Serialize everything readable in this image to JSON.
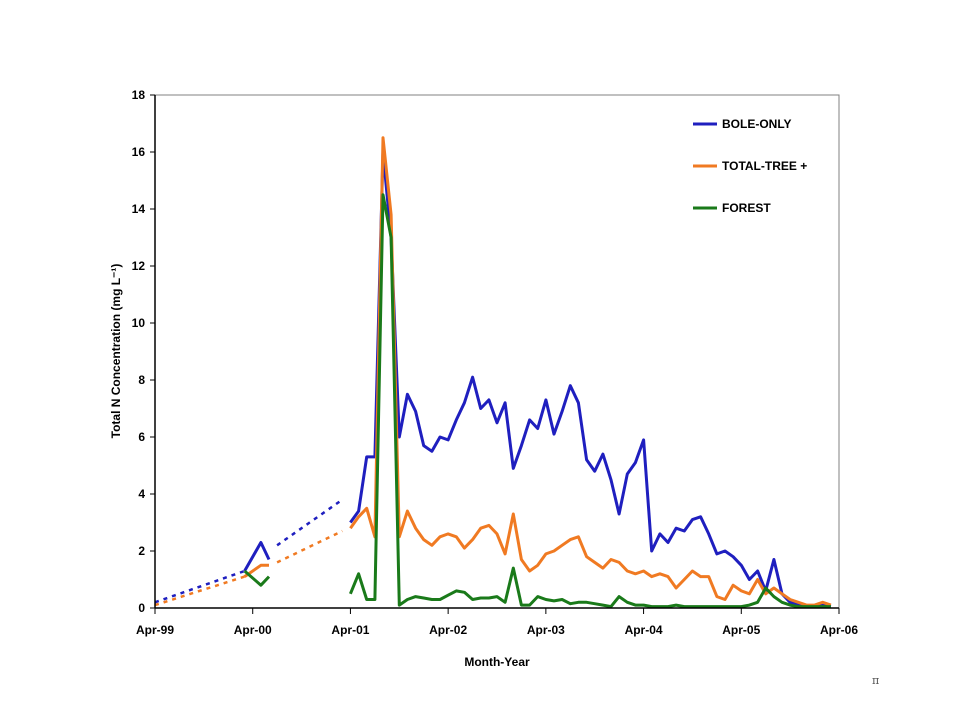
{
  "chart_data": {
    "type": "line",
    "title": "",
    "xlabel": "Month-Year",
    "ylabel": "Total N Concentration (mg L⁻¹)",
    "xlim": [
      "1999-04",
      "2006-04"
    ],
    "ylim": [
      0,
      18
    ],
    "x_ticks": [
      "Apr-99",
      "Apr-00",
      "Apr-01",
      "Apr-02",
      "Apr-03",
      "Apr-04",
      "Apr-05",
      "Apr-06"
    ],
    "y_ticks": [
      0,
      2,
      4,
      6,
      8,
      10,
      12,
      14,
      16,
      18
    ],
    "grid": false,
    "legend_position": "top-right",
    "series": [
      {
        "name": "BOLE-ONLY",
        "color": "#1f1fbf",
        "segments": [
          [
            [
              "2000-03",
              1.3
            ],
            [
              "2000-05",
              2.3
            ],
            [
              "2000-06",
              1.7
            ]
          ],
          [
            [
              "2001-04",
              3.0
            ],
            [
              "2001-05",
              3.4
            ],
            [
              "2001-06",
              5.3
            ],
            [
              "2001-07",
              5.3
            ],
            [
              "2001-08",
              16.0
            ],
            [
              "2001-09",
              13.0
            ],
            [
              "2001-10",
              6.0
            ],
            [
              "2001-11",
              7.5
            ],
            [
              "2001-12",
              6.9
            ],
            [
              "2002-01",
              5.7
            ],
            [
              "2002-02",
              5.5
            ],
            [
              "2002-03",
              6.0
            ],
            [
              "2002-04",
              5.9
            ],
            [
              "2002-05",
              6.6
            ],
            [
              "2002-06",
              7.2
            ],
            [
              "2002-07",
              8.1
            ],
            [
              "2002-08",
              7.0
            ],
            [
              "2002-09",
              7.3
            ],
            [
              "2002-10",
              6.5
            ],
            [
              "2002-11",
              7.2
            ],
            [
              "2002-12",
              4.9
            ],
            [
              "2003-01",
              5.7
            ],
            [
              "2003-02",
              6.6
            ],
            [
              "2003-03",
              6.3
            ],
            [
              "2003-04",
              7.3
            ],
            [
              "2003-05",
              6.1
            ],
            [
              "2003-06",
              6.9
            ],
            [
              "2003-07",
              7.8
            ],
            [
              "2003-08",
              7.2
            ],
            [
              "2003-09",
              5.2
            ],
            [
              "2003-10",
              4.8
            ],
            [
              "2003-11",
              5.4
            ],
            [
              "2003-12",
              4.5
            ],
            [
              "2004-01",
              3.3
            ],
            [
              "2004-02",
              4.7
            ],
            [
              "2004-03",
              5.1
            ],
            [
              "2004-04",
              5.9
            ],
            [
              "2004-05",
              2.0
            ],
            [
              "2004-06",
              2.6
            ],
            [
              "2004-07",
              2.3
            ],
            [
              "2004-08",
              2.8
            ],
            [
              "2004-09",
              2.7
            ],
            [
              "2004-10",
              3.1
            ],
            [
              "2004-11",
              3.2
            ],
            [
              "2004-12",
              2.6
            ],
            [
              "2005-01",
              1.9
            ],
            [
              "2005-02",
              2.0
            ],
            [
              "2005-03",
              1.8
            ],
            [
              "2005-04",
              1.5
            ],
            [
              "2005-05",
              1.0
            ],
            [
              "2005-06",
              1.3
            ],
            [
              "2005-07",
              0.6
            ],
            [
              "2005-08",
              1.7
            ],
            [
              "2005-09",
              0.5
            ],
            [
              "2005-10",
              0.2
            ],
            [
              "2005-11",
              0.1
            ],
            [
              "2005-12",
              0.05
            ],
            [
              "2006-01",
              0.05
            ],
            [
              "2006-02",
              0.1
            ],
            [
              "2006-03",
              0.05
            ]
          ]
        ],
        "dashed_segments": [
          [
            [
              "1999-04",
              0.2
            ],
            [
              "2000-03",
              1.3
            ]
          ],
          [
            [
              "2000-07",
              2.2
            ],
            [
              "2001-03",
              3.8
            ]
          ]
        ]
      },
      {
        "name": "TOTAL-TREE +",
        "color": "#f07a22",
        "segments": [
          [
            [
              "2000-03",
              1.1
            ],
            [
              "2000-05",
              1.5
            ],
            [
              "2000-06",
              1.5
            ]
          ],
          [
            [
              "2001-04",
              2.8
            ],
            [
              "2001-05",
              3.2
            ],
            [
              "2001-06",
              3.5
            ],
            [
              "2001-07",
              2.5
            ],
            [
              "2001-08",
              16.5
            ],
            [
              "2001-09",
              13.8
            ],
            [
              "2001-10",
              2.5
            ],
            [
              "2001-11",
              3.4
            ],
            [
              "2001-12",
              2.8
            ],
            [
              "2002-01",
              2.4
            ],
            [
              "2002-02",
              2.2
            ],
            [
              "2002-03",
              2.5
            ],
            [
              "2002-04",
              2.6
            ],
            [
              "2002-05",
              2.5
            ],
            [
              "2002-06",
              2.1
            ],
            [
              "2002-07",
              2.4
            ],
            [
              "2002-08",
              2.8
            ],
            [
              "2002-09",
              2.9
            ],
            [
              "2002-10",
              2.6
            ],
            [
              "2002-11",
              1.9
            ],
            [
              "2002-12",
              3.3
            ],
            [
              "2003-01",
              1.7
            ],
            [
              "2003-02",
              1.3
            ],
            [
              "2003-03",
              1.5
            ],
            [
              "2003-04",
              1.9
            ],
            [
              "2003-05",
              2.0
            ],
            [
              "2003-06",
              2.2
            ],
            [
              "2003-07",
              2.4
            ],
            [
              "2003-08",
              2.5
            ],
            [
              "2003-09",
              1.8
            ],
            [
              "2003-10",
              1.6
            ],
            [
              "2003-11",
              1.4
            ],
            [
              "2003-12",
              1.7
            ],
            [
              "2004-01",
              1.6
            ],
            [
              "2004-02",
              1.3
            ],
            [
              "2004-03",
              1.2
            ],
            [
              "2004-04",
              1.3
            ],
            [
              "2004-05",
              1.1
            ],
            [
              "2004-06",
              1.2
            ],
            [
              "2004-07",
              1.1
            ],
            [
              "2004-08",
              0.7
            ],
            [
              "2004-09",
              1.0
            ],
            [
              "2004-10",
              1.3
            ],
            [
              "2004-11",
              1.1
            ],
            [
              "2004-12",
              1.1
            ],
            [
              "2005-01",
              0.4
            ],
            [
              "2005-02",
              0.3
            ],
            [
              "2005-03",
              0.8
            ],
            [
              "2005-04",
              0.6
            ],
            [
              "2005-05",
              0.5
            ],
            [
              "2005-06",
              1.0
            ],
            [
              "2005-07",
              0.5
            ],
            [
              "2005-08",
              0.7
            ],
            [
              "2005-09",
              0.5
            ],
            [
              "2005-10",
              0.3
            ],
            [
              "2005-11",
              0.2
            ],
            [
              "2005-12",
              0.1
            ],
            [
              "2006-01",
              0.1
            ],
            [
              "2006-02",
              0.2
            ],
            [
              "2006-03",
              0.1
            ]
          ]
        ],
        "dashed_segments": [
          [
            [
              "1999-04",
              0.1
            ],
            [
              "2000-03",
              1.1
            ]
          ],
          [
            [
              "2000-07",
              1.6
            ],
            [
              "2001-03",
              2.7
            ]
          ]
        ]
      },
      {
        "name": "FOREST",
        "color": "#1a7a1a",
        "segments": [
          [
            [
              "2000-03",
              1.3
            ],
            [
              "2000-05",
              0.8
            ],
            [
              "2000-06",
              1.1
            ]
          ],
          [
            [
              "2001-04",
              0.5
            ],
            [
              "2001-05",
              1.2
            ],
            [
              "2001-06",
              0.3
            ],
            [
              "2001-07",
              0.3
            ],
            [
              "2001-08",
              14.5
            ],
            [
              "2001-09",
              13.0
            ],
            [
              "2001-10",
              0.1
            ],
            [
              "2001-11",
              0.3
            ],
            [
              "2001-12",
              0.4
            ],
            [
              "2002-01",
              0.35
            ],
            [
              "2002-02",
              0.3
            ],
            [
              "2002-03",
              0.3
            ],
            [
              "2002-04",
              0.45
            ],
            [
              "2002-05",
              0.6
            ],
            [
              "2002-06",
              0.55
            ],
            [
              "2002-07",
              0.3
            ],
            [
              "2002-08",
              0.35
            ],
            [
              "2002-09",
              0.35
            ],
            [
              "2002-10",
              0.4
            ],
            [
              "2002-11",
              0.2
            ],
            [
              "2002-12",
              1.4
            ],
            [
              "2003-01",
              0.1
            ],
            [
              "2003-02",
              0.1
            ],
            [
              "2003-03",
              0.4
            ],
            [
              "2003-04",
              0.3
            ],
            [
              "2003-05",
              0.25
            ],
            [
              "2003-06",
              0.3
            ],
            [
              "2003-07",
              0.15
            ],
            [
              "2003-08",
              0.2
            ],
            [
              "2003-09",
              0.2
            ],
            [
              "2003-10",
              0.15
            ],
            [
              "2003-11",
              0.1
            ],
            [
              "2003-12",
              0.05
            ],
            [
              "2004-01",
              0.4
            ],
            [
              "2004-02",
              0.2
            ],
            [
              "2004-03",
              0.1
            ],
            [
              "2004-04",
              0.1
            ],
            [
              "2004-05",
              0.05
            ],
            [
              "2004-06",
              0.05
            ],
            [
              "2004-07",
              0.05
            ],
            [
              "2004-08",
              0.1
            ],
            [
              "2004-09",
              0.05
            ],
            [
              "2004-10",
              0.05
            ],
            [
              "2004-11",
              0.05
            ],
            [
              "2004-12",
              0.05
            ],
            [
              "2005-01",
              0.05
            ],
            [
              "2005-02",
              0.05
            ],
            [
              "2005-03",
              0.05
            ],
            [
              "2005-04",
              0.05
            ],
            [
              "2005-05",
              0.1
            ],
            [
              "2005-06",
              0.2
            ],
            [
              "2005-07",
              0.7
            ],
            [
              "2005-08",
              0.4
            ],
            [
              "2005-09",
              0.2
            ],
            [
              "2005-10",
              0.1
            ],
            [
              "2005-11",
              0.05
            ],
            [
              "2005-12",
              0.05
            ],
            [
              "2006-01",
              0.05
            ],
            [
              "2006-02",
              0.05
            ],
            [
              "2006-03",
              0.05
            ]
          ]
        ],
        "dashed_segments": []
      }
    ]
  },
  "corner_mark": "π"
}
